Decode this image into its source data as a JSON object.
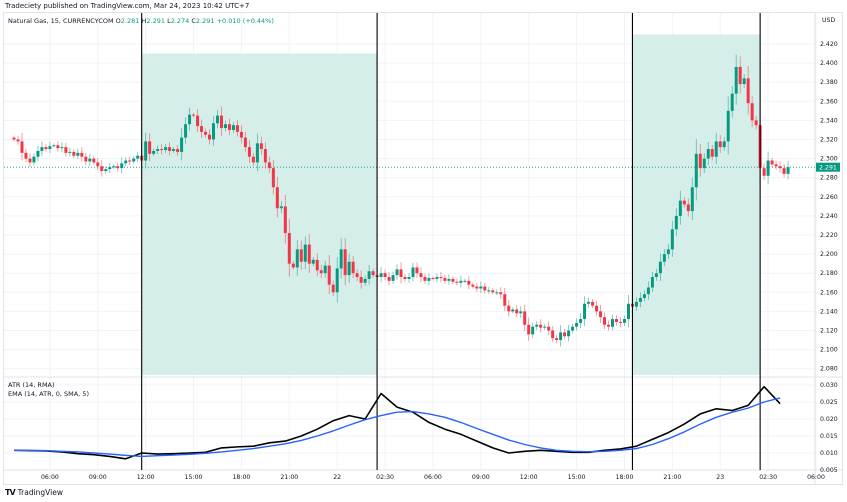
{
  "header": {
    "published": "Tradeciety published on TradingView.com, Mar 24, 2023 10:42 UTC+7"
  },
  "legend": {
    "symbol": "Natural Gas, 15, CURRENCYCOM",
    "o_label": "O",
    "o": "2.281",
    "h_label": "H",
    "h": "2.291",
    "l_label": "L",
    "l": "2.274",
    "c_label": "C",
    "c": "2.291",
    "change": "+0.010 (+0.44%)"
  },
  "indicators": {
    "atr": "ATR (14, RMA)",
    "ema": "EMA (14, ATR, 0, SMA, 5)"
  },
  "footer": {
    "brand": "TradingView",
    "logo_text": "17"
  },
  "colors": {
    "up": "#089981",
    "down": "#f23645",
    "zone": "#d5eee9",
    "atr": "#000000",
    "ema": "#2962ff",
    "grid": "#f0f3fa"
  },
  "chart_data": [
    {
      "type": "candlestick",
      "currency": "USD",
      "interval_minutes": 15,
      "last_price": "2.291",
      "ylim": [
        2.075,
        2.435
      ],
      "y_ticks": [
        "2.420",
        "2.400",
        "2.380",
        "2.360",
        "2.340",
        "2.320",
        "2.300",
        "2.280",
        "2.260",
        "2.240",
        "2.220",
        "2.200",
        "2.180",
        "2.160",
        "2.140",
        "2.120",
        "2.100",
        "2.080"
      ],
      "x_ticks": [
        "06:00",
        "09:00",
        "12:00",
        "15:00",
        "18:00",
        "21:00",
        "22",
        "02:30",
        "06:00",
        "09:00",
        "12:00",
        "15:00",
        "18:00",
        "21:00",
        "23",
        "02:30",
        "06:00"
      ],
      "close": [
        2.32,
        2.318,
        2.306,
        2.3,
        2.296,
        2.302,
        2.308,
        2.312,
        2.31,
        2.313,
        2.314,
        2.311,
        2.312,
        2.306,
        2.307,
        2.303,
        2.306,
        2.302,
        2.297,
        2.3,
        2.296,
        2.292,
        2.287,
        2.289,
        2.291,
        2.292,
        2.29,
        2.295,
        2.298,
        2.297,
        2.3,
        2.303,
        2.298,
        2.318,
        2.305,
        2.308,
        2.31,
        2.309,
        2.312,
        2.308,
        2.31,
        2.307,
        2.322,
        2.336,
        2.346,
        2.345,
        2.334,
        2.328,
        2.325,
        2.32,
        2.337,
        2.345,
        2.332,
        2.336,
        2.33,
        2.335,
        2.328,
        2.322,
        2.312,
        2.302,
        2.296,
        2.316,
        2.31,
        2.296,
        2.29,
        2.27,
        2.248,
        2.25,
        2.222,
        2.19,
        2.186,
        2.205,
        2.192,
        2.21,
        2.19,
        2.194,
        2.183,
        2.18,
        2.188,
        2.168,
        2.16,
        2.185,
        2.205,
        2.178,
        2.192,
        2.18,
        2.176,
        2.17,
        2.174,
        2.182,
        2.178,
        2.176,
        2.18,
        2.176,
        2.172,
        2.178,
        2.184,
        2.176,
        2.174,
        2.176,
        2.186,
        2.18,
        2.176,
        2.172,
        2.175,
        2.174,
        2.176,
        2.175,
        2.172,
        2.174,
        2.171,
        2.17,
        2.172,
        2.172,
        2.168,
        2.166,
        2.164,
        2.166,
        2.162,
        2.162,
        2.16,
        2.16,
        2.158,
        2.146,
        2.14,
        2.142,
        2.138,
        2.14,
        2.126,
        2.116,
        2.124,
        2.126,
        2.123,
        2.124,
        2.12,
        2.112,
        2.11,
        2.118,
        2.114,
        2.12,
        2.124,
        2.128,
        2.132,
        2.148,
        2.15,
        2.146,
        2.14,
        2.134,
        2.126,
        2.124,
        2.132,
        2.129,
        2.128,
        2.132,
        2.148,
        2.145,
        2.15,
        2.154,
        2.158,
        2.165,
        2.176,
        2.18,
        2.192,
        2.2,
        2.205,
        2.226,
        2.24,
        2.256,
        2.252,
        2.245,
        2.27,
        2.305,
        2.29,
        2.3,
        2.31,
        2.302,
        2.318,
        2.312,
        2.318,
        2.35,
        2.368,
        2.396,
        2.378,
        2.384,
        2.358,
        2.34,
        2.335,
        2.29,
        2.282,
        2.298,
        2.294,
        2.292,
        2.29,
        2.284,
        2.291
      ],
      "zones": [
        {
          "start_time": "11:45",
          "end_time": "02:30",
          "top": 2.41
        },
        {
          "start_time": "18:30",
          "end_time": "02:30",
          "top": 2.43
        }
      ],
      "vertical_lines": [
        "11:45",
        "02:30",
        "18:30",
        "02:30"
      ]
    },
    {
      "type": "line",
      "ylim": [
        0.003,
        0.0315
      ],
      "y_ticks": [
        "0.030",
        "0.025",
        "0.020",
        "0.015",
        "0.010",
        "0.005"
      ],
      "sample_interval": "1h",
      "series": [
        {
          "name": "ATR (14, RMA)",
          "values": [
            0.0108,
            0.0107,
            0.0106,
            0.0103,
            0.0098,
            0.0095,
            0.009,
            0.0083,
            0.01,
            0.0097,
            0.0098,
            0.01,
            0.0102,
            0.0115,
            0.0118,
            0.012,
            0.013,
            0.0135,
            0.015,
            0.017,
            0.0195,
            0.021,
            0.02,
            0.0275,
            0.0235,
            0.022,
            0.019,
            0.017,
            0.0155,
            0.0135,
            0.0115,
            0.01,
            0.0105,
            0.0108,
            0.0105,
            0.0102,
            0.0102,
            0.0108,
            0.0112,
            0.012,
            0.014,
            0.016,
            0.0185,
            0.0215,
            0.023,
            0.0225,
            0.024,
            0.0295,
            0.0245
          ]
        },
        {
          "name": "EMA (14, ATR, 0, SMA, 5)",
          "values": [
            0.0108,
            0.0108,
            0.0107,
            0.0105,
            0.0103,
            0.01,
            0.0097,
            0.0093,
            0.009,
            0.0092,
            0.0094,
            0.0096,
            0.0099,
            0.0103,
            0.0108,
            0.0113,
            0.012,
            0.0127,
            0.0137,
            0.015,
            0.0165,
            0.0182,
            0.0198,
            0.021,
            0.022,
            0.0222,
            0.0215,
            0.0205,
            0.019,
            0.0172,
            0.0155,
            0.0138,
            0.0125,
            0.0115,
            0.0108,
            0.0105,
            0.0104,
            0.0105,
            0.0108,
            0.0113,
            0.0125,
            0.0142,
            0.0162,
            0.0185,
            0.0205,
            0.022,
            0.0232,
            0.025,
            0.0262
          ]
        }
      ]
    }
  ]
}
